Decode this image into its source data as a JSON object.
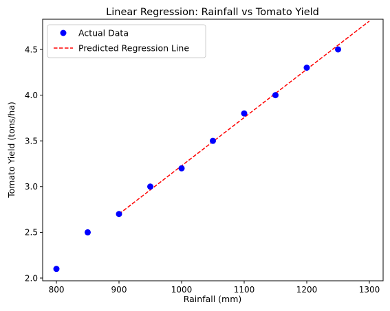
{
  "chart_data": {
    "type": "scatter",
    "title": "Linear Regression: Rainfall vs Tomato Yield",
    "xlabel": "Rainfall (mm)",
    "ylabel": "Tomato Yield (tons/ha)",
    "xlim": [
      778,
      1322
    ],
    "ylim": [
      1.97,
      4.83
    ],
    "xticks": [
      800,
      900,
      1000,
      1100,
      1200,
      1300
    ],
    "yticks": [
      2.0,
      2.5,
      3.0,
      3.5,
      4.0,
      4.5
    ],
    "xtick_labels": [
      "800",
      "900",
      "1000",
      "1100",
      "1200",
      "1300"
    ],
    "ytick_labels": [
      "2.0",
      "2.5",
      "3.0",
      "3.5",
      "4.0",
      "4.5"
    ],
    "grid": false,
    "legend_position": "top-left",
    "series": [
      {
        "name": "Actual Data",
        "kind": "scatter",
        "color": "#0000ff",
        "x": [
          800,
          850,
          900,
          950,
          1000,
          1050,
          1100,
          1150,
          1200,
          1250
        ],
        "y": [
          2.1,
          2.5,
          2.7,
          3.0,
          3.2,
          3.5,
          3.8,
          4.0,
          4.3,
          4.5
        ]
      },
      {
        "name": "Predicted Regression Line",
        "kind": "line",
        "style": "dashed",
        "color": "#ff0000",
        "x": [
          900,
          1300
        ],
        "y": [
          2.7,
          4.81
        ]
      }
    ]
  }
}
